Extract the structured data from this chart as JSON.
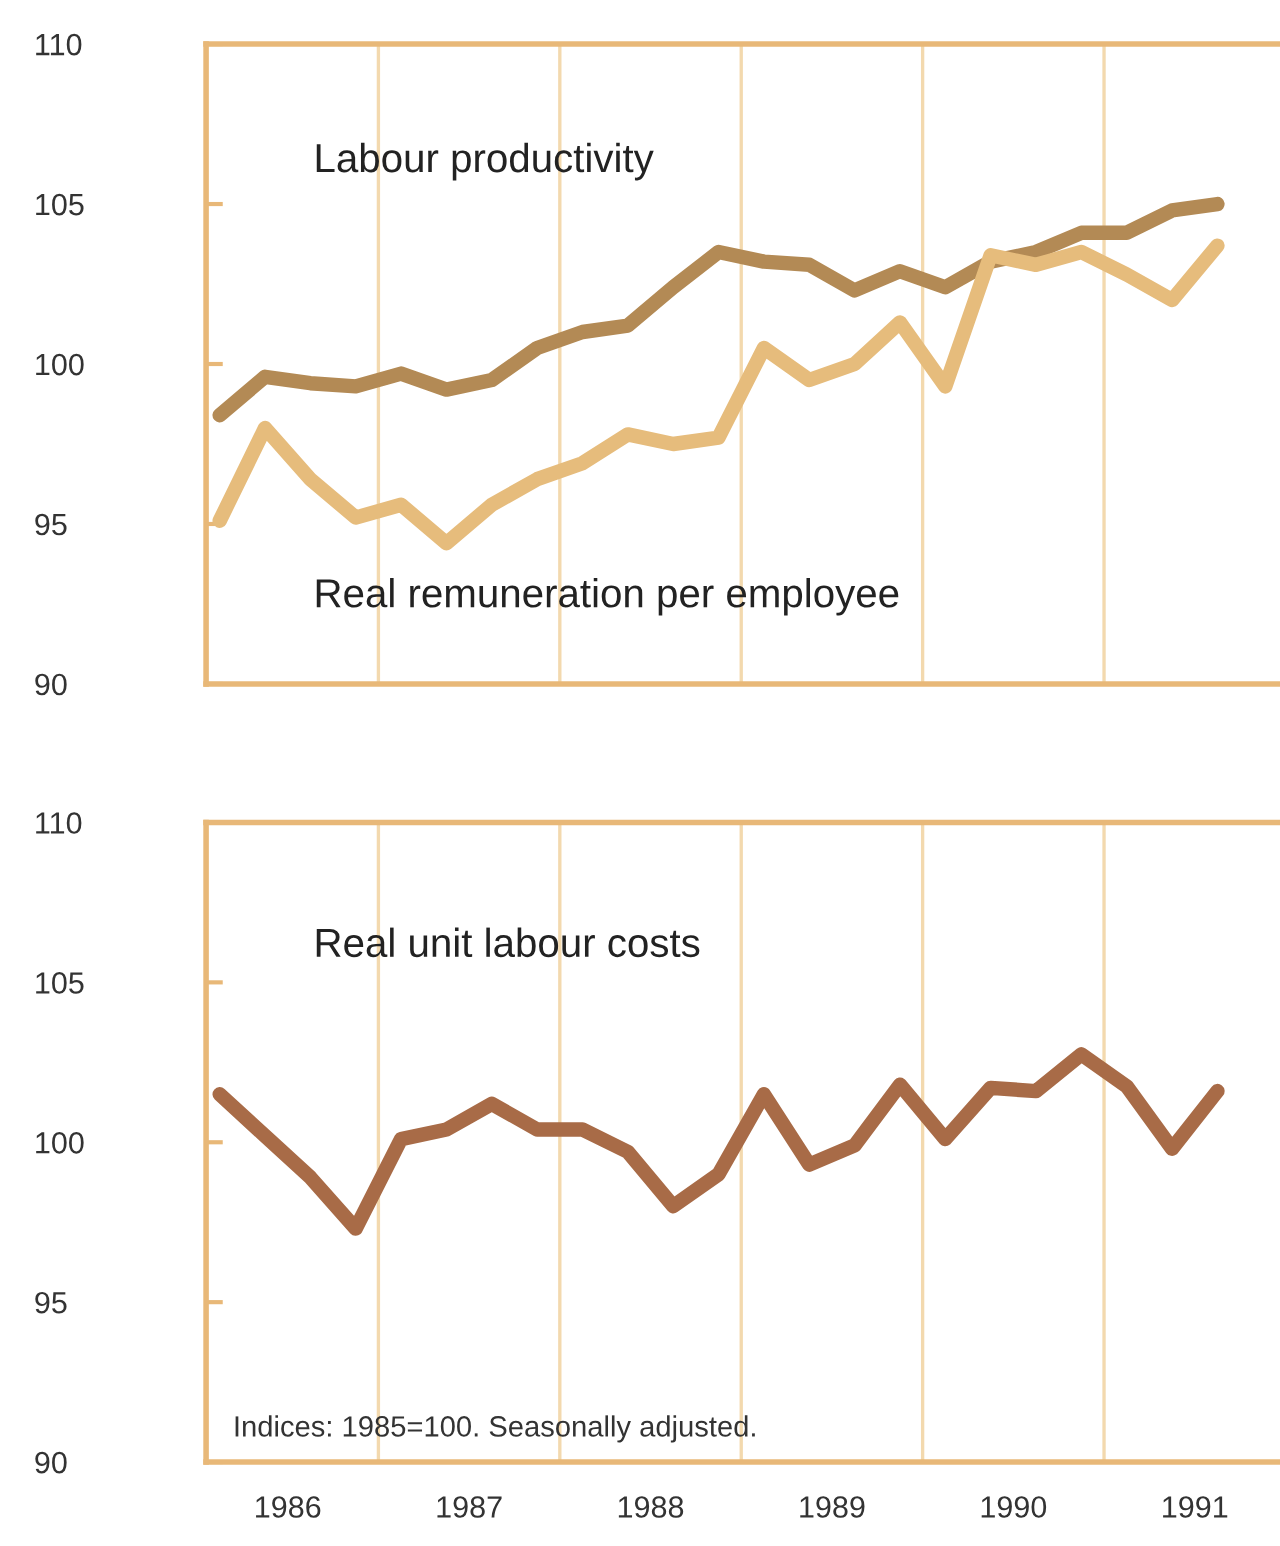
{
  "chart_data": [
    {
      "type": "line",
      "x": [
        1986.125,
        1986.375,
        1986.625,
        1986.875,
        1987.125,
        1987.375,
        1987.625,
        1987.875,
        1988.125,
        1988.375,
        1988.625,
        1988.875,
        1989.125,
        1989.375,
        1989.625,
        1989.875,
        1990.125,
        1990.375,
        1990.625,
        1990.875,
        1991.125,
        1991.375,
        1991.625
      ],
      "series": [
        {
          "name": "Labour productivity",
          "color": "#b38a55",
          "values": [
            98.4,
            99.6,
            99.4,
            99.3,
            99.7,
            99.2,
            99.5,
            100.5,
            101.0,
            101.2,
            102.4,
            103.5,
            103.2,
            103.1,
            102.3,
            102.9,
            102.4,
            103.2,
            103.5,
            104.1,
            104.1,
            104.8,
            105.0
          ]
        },
        {
          "name": "Real remuneration per employee",
          "color": "#e6bc7c",
          "values": [
            95.1,
            98.0,
            96.4,
            95.2,
            95.6,
            94.4,
            95.6,
            96.4,
            96.9,
            97.8,
            97.5,
            97.7,
            100.5,
            99.5,
            100.0,
            101.3,
            99.3,
            103.4,
            103.1,
            103.5,
            102.8,
            102.0,
            103.7
          ]
        }
      ],
      "xlim": [
        1986.05,
        1991.97
      ],
      "ylim": [
        90,
        110
      ],
      "yticks": [
        90,
        95,
        100,
        105,
        110
      ],
      "tick_labels": "y",
      "ref_lines": [
        {
          "axis": "x",
          "value": 1987,
          "color": "#f3d9ae"
        },
        {
          "axis": "x",
          "value": 1988,
          "color": "#f3d9ae"
        },
        {
          "axis": "x",
          "value": 1989,
          "color": "#f3d9ae"
        },
        {
          "axis": "x",
          "value": 1990,
          "color": "#f3d9ae"
        },
        {
          "axis": "x",
          "value": 1991,
          "color": "#f3d9ae"
        }
      ]
    },
    {
      "type": "line",
      "x": [
        1986.125,
        1986.375,
        1986.625,
        1986.875,
        1987.125,
        1987.375,
        1987.625,
        1987.875,
        1988.125,
        1988.375,
        1988.625,
        1988.875,
        1989.125,
        1989.375,
        1989.625,
        1989.875,
        1990.125,
        1990.375,
        1990.625,
        1990.875,
        1991.125,
        1991.375,
        1991.625
      ],
      "series": [
        {
          "name": "Real unit labour costs",
          "color": "#a86b47",
          "values": [
            101.5,
            100.2,
            98.9,
            97.3,
            100.1,
            100.4,
            101.2,
            100.4,
            100.4,
            99.7,
            98.0,
            99.0,
            101.5,
            99.3,
            99.9,
            101.8,
            100.1,
            101.7,
            101.6,
            102.75,
            101.75,
            99.8,
            101.6
          ]
        }
      ],
      "xlim": [
        1986.05,
        1991.97
      ],
      "xticks": [
        {
          "value": 1986.5,
          "label": "1986"
        },
        {
          "value": 1987.5,
          "label": "1987"
        },
        {
          "value": 1988.5,
          "label": "1988"
        },
        {
          "value": 1989.5,
          "label": "1989"
        },
        {
          "value": 1990.5,
          "label": "1990"
        },
        {
          "value": 1991.5,
          "label": "1991"
        }
      ],
      "ylim": [
        90,
        110
      ],
      "yticks": [
        90,
        95,
        100,
        105,
        110
      ],
      "ref_lines": [
        {
          "axis": "x",
          "value": 1987,
          "color": "#f3d9ae"
        },
        {
          "axis": "x",
          "value": 1988,
          "color": "#f3d9ae"
        },
        {
          "axis": "x",
          "value": 1989,
          "color": "#f3d9ae"
        },
        {
          "axis": "x",
          "value": 1990,
          "color": "#f3d9ae"
        },
        {
          "axis": "x",
          "value": 1991,
          "color": "#f3d9ae"
        }
      ],
      "annotations": [
        "Indices: 1985=100. Seasonally adjusted."
      ]
    }
  ]
}
